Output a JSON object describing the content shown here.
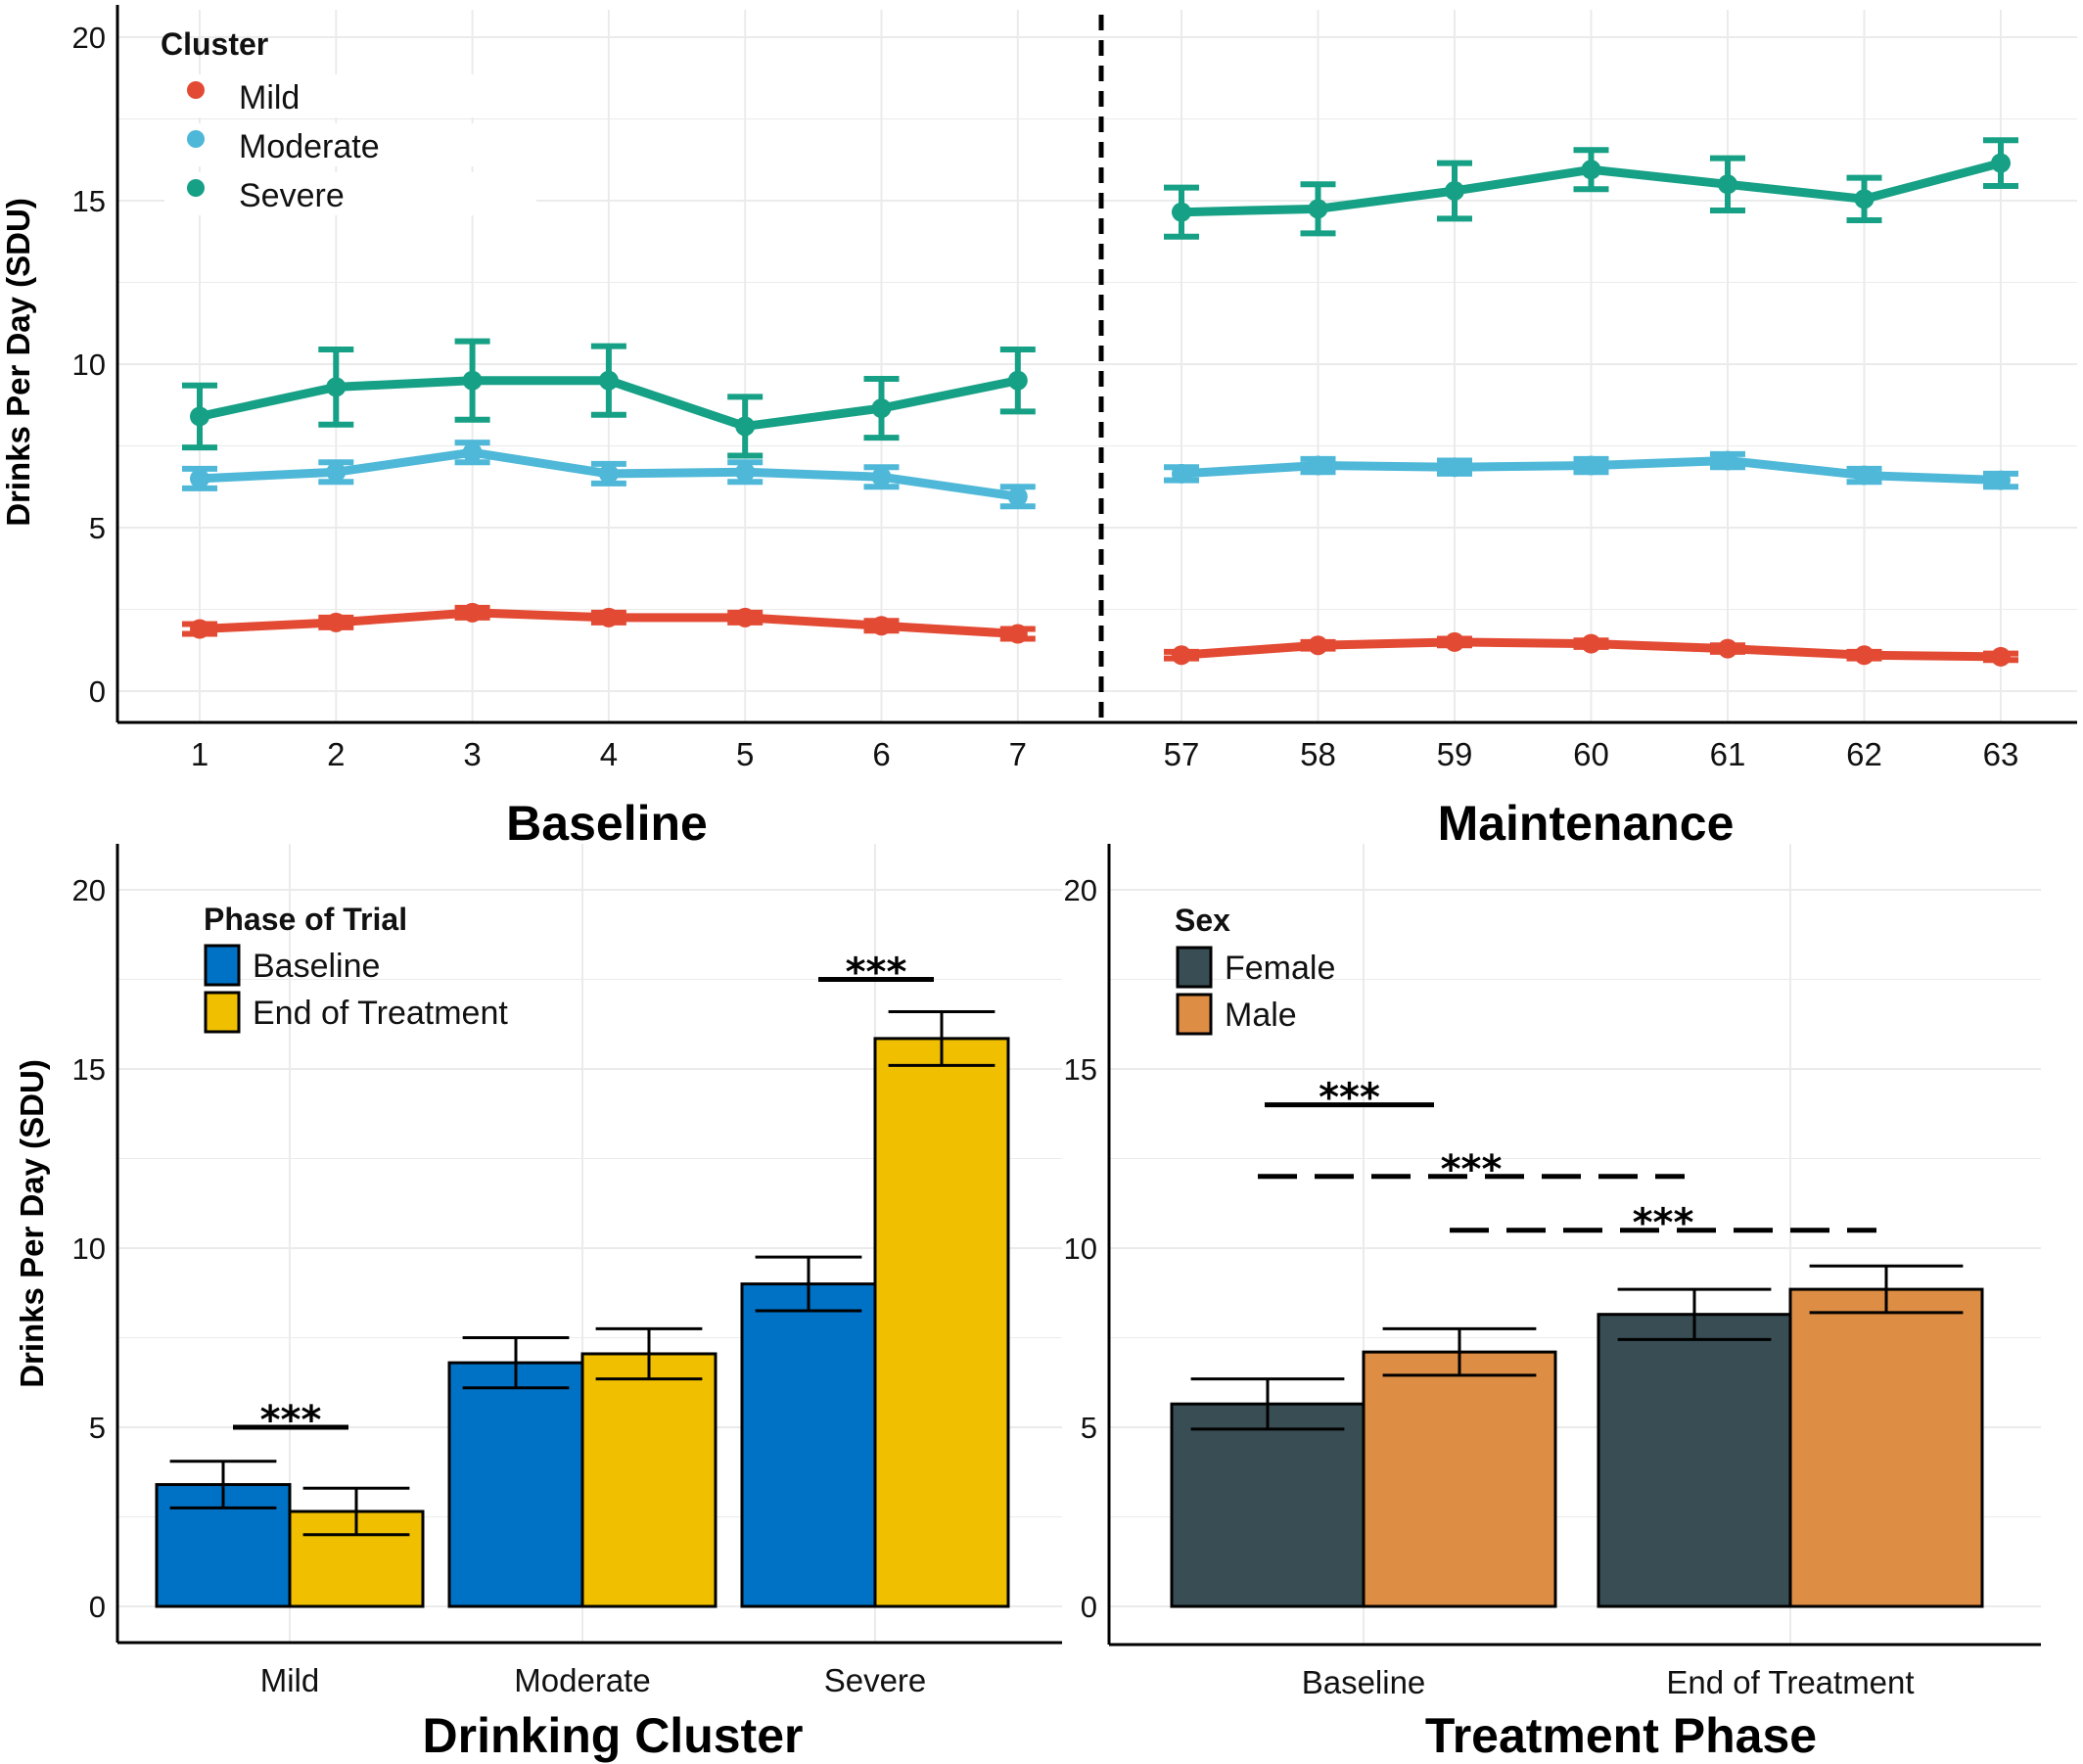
{
  "chart_data": [
    {
      "type": "line",
      "panel": "top",
      "ylabel": "Drinks Per Day (SDU)",
      "ylim": [
        0,
        20
      ],
      "yticks": [
        "0",
        "5",
        "10",
        "15",
        "20"
      ],
      "legend_title": "Cluster",
      "legend_position": "top-left",
      "colors": {
        "Mild": "#e34a33",
        "Moderate": "#4fb8d8",
        "Severe": "#16a085"
      },
      "segments": [
        {
          "xlabel": "Baseline",
          "x": [
            "1",
            "2",
            "3",
            "4",
            "5",
            "6",
            "7"
          ],
          "series": [
            {
              "name": "Mild",
              "values": [
                1.9,
                2.1,
                2.4,
                2.25,
                2.25,
                2.0,
                1.75
              ],
              "errors": [
                0.15,
                0.15,
                0.15,
                0.15,
                0.15,
                0.15,
                0.15
              ]
            },
            {
              "name": "Moderate",
              "values": [
                6.5,
                6.7,
                7.3,
                6.65,
                6.7,
                6.55,
                5.95
              ],
              "errors": [
                0.3,
                0.3,
                0.3,
                0.3,
                0.3,
                0.3,
                0.3
              ]
            },
            {
              "name": "Severe",
              "values": [
                8.4,
                9.3,
                9.5,
                9.5,
                8.1,
                8.65,
                9.5
              ],
              "errors": [
                0.95,
                1.15,
                1.2,
                1.05,
                0.9,
                0.9,
                0.95
              ]
            }
          ]
        },
        {
          "xlabel": "Maintenance",
          "x": [
            "57",
            "58",
            "59",
            "60",
            "61",
            "62",
            "63"
          ],
          "series": [
            {
              "name": "Mild",
              "values": [
                1.1,
                1.4,
                1.5,
                1.45,
                1.3,
                1.1,
                1.05
              ],
              "errors": [
                0.1,
                0.1,
                0.1,
                0.1,
                0.1,
                0.1,
                0.1
              ]
            },
            {
              "name": "Moderate",
              "values": [
                6.65,
                6.9,
                6.85,
                6.9,
                7.05,
                6.6,
                6.45
              ],
              "errors": [
                0.2,
                0.2,
                0.2,
                0.2,
                0.2,
                0.2,
                0.2
              ]
            },
            {
              "name": "Severe",
              "values": [
                14.65,
                14.75,
                15.3,
                15.95,
                15.5,
                15.05,
                16.15
              ],
              "errors": [
                0.75,
                0.75,
                0.85,
                0.6,
                0.8,
                0.65,
                0.7
              ]
            }
          ]
        }
      ]
    },
    {
      "type": "bar",
      "panel": "bottom-left",
      "xlabel": "Drinking Cluster",
      "ylabel": "Drinks Per Day (SDU)",
      "ylim": [
        0,
        20
      ],
      "yticks": [
        "0",
        "5",
        "10",
        "15",
        "20"
      ],
      "legend_title": "Phase of Trial",
      "legend_position": "top-left",
      "categories": [
        "Mild",
        "Moderate",
        "Severe"
      ],
      "series": [
        {
          "name": "Baseline",
          "color": "#0072c6",
          "values": [
            3.4,
            6.8,
            9.0
          ],
          "errors": [
            0.65,
            0.7,
            0.75
          ]
        },
        {
          "name": "End of Treatment",
          "color": "#f0c000",
          "values": [
            2.65,
            7.05,
            15.85
          ],
          "errors": [
            0.65,
            0.7,
            0.75
          ]
        }
      ],
      "annotations": [
        {
          "label": "***",
          "category": "Mild",
          "y": 5.0,
          "style": "solid"
        },
        {
          "label": "***",
          "category": "Severe",
          "y": 17.5,
          "style": "solid"
        }
      ]
    },
    {
      "type": "bar",
      "panel": "bottom-right",
      "xlabel": "Treatment Phase",
      "ylabel": "",
      "ylim": [
        0,
        20
      ],
      "yticks": [
        "0",
        "5",
        "10",
        "15",
        "20"
      ],
      "legend_title": "Sex",
      "legend_position": "top-left",
      "categories": [
        "Baseline",
        "End of Treatment"
      ],
      "series": [
        {
          "name": "Female",
          "color": "#384d54",
          "values": [
            5.65,
            8.15
          ],
          "errors": [
            0.7,
            0.7
          ]
        },
        {
          "name": "Male",
          "color": "#de8d44",
          "values": [
            7.1,
            8.85
          ],
          "errors": [
            0.65,
            0.65
          ]
        }
      ],
      "annotations": [
        {
          "label": "***",
          "y": 14.0,
          "style": "solid",
          "from": "Baseline/Female",
          "to": "Baseline/Male"
        },
        {
          "label": "***",
          "y": 12.0,
          "style": "dashed",
          "from": "Baseline/Female",
          "to": "End of Treatment/Female"
        },
        {
          "label": "***",
          "y": 10.5,
          "style": "dashed",
          "from": "Baseline/Male",
          "to": "End of Treatment/Male"
        }
      ]
    }
  ]
}
